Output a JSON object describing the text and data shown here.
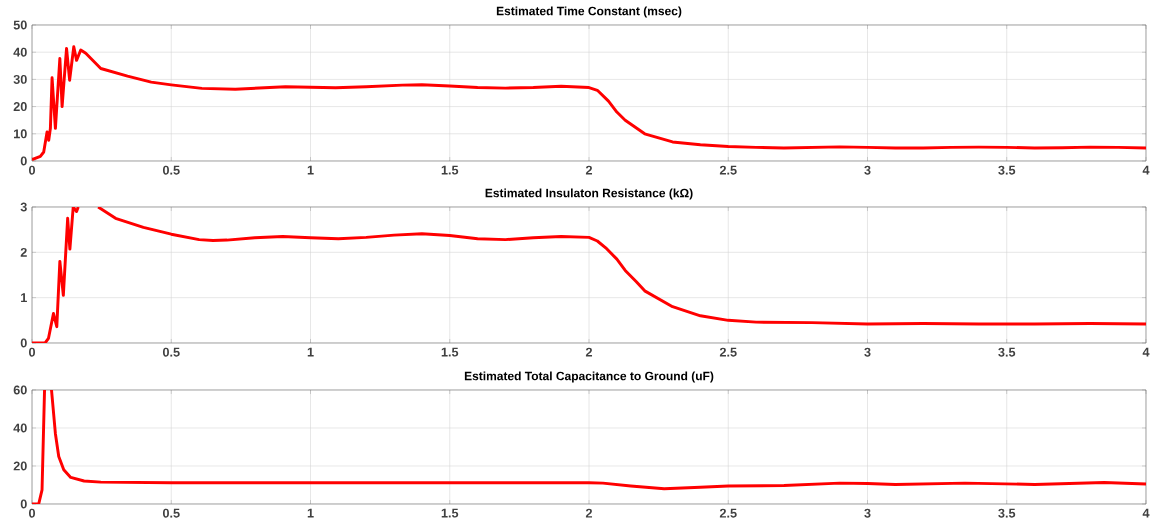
{
  "chart_data": [
    {
      "type": "line",
      "title": "Estimated Time Constant (msec)",
      "grid": true,
      "x": [
        0,
        0.03,
        0.042,
        0.054,
        0.06,
        0.066,
        0.072,
        0.084,
        0.1,
        0.108,
        0.124,
        0.135,
        0.15,
        0.16,
        0.175,
        0.193,
        0.247,
        0.343,
        0.428,
        0.5,
        0.61,
        0.73,
        0.91,
        1.09,
        1.2,
        1.33,
        1.4,
        1.5,
        1.6,
        1.7,
        1.8,
        1.9,
        2.0,
        2.03,
        2.07,
        2.1,
        2.13,
        2.2,
        2.3,
        2.4,
        2.5,
        2.6,
        2.7,
        2.8,
        2.9,
        3.0,
        3.1,
        3.2,
        3.3,
        3.4,
        3.5,
        3.6,
        3.7,
        3.8,
        3.9,
        4.0
      ],
      "series": [
        {
          "color": "#ff0000",
          "values": [
            0.5,
            1.7,
            3.3,
            10.7,
            7.6,
            12,
            30.6,
            12,
            37.7,
            20,
            41.4,
            29.7,
            42,
            37,
            40.8,
            39.6,
            34,
            31.2,
            29,
            28,
            26.7,
            26.4,
            27.3,
            26.9,
            27.3,
            27.9,
            28,
            27.6,
            27,
            26.8,
            27,
            27.5,
            27,
            26,
            22,
            18,
            15,
            10,
            7,
            6,
            5.3,
            5,
            4.8,
            5,
            5.2,
            5,
            4.8,
            4.8,
            5,
            5.1,
            5,
            4.8,
            4.9,
            5.1,
            5,
            4.8
          ]
        }
      ],
      "xlim": [
        0,
        4
      ],
      "xticks": [
        0,
        0.5,
        1,
        1.5,
        2,
        2.5,
        3,
        3.5,
        4
      ],
      "ylim": [
        0,
        50
      ],
      "yticks": [
        0,
        10,
        20,
        30,
        40,
        50
      ]
    },
    {
      "type": "line",
      "title": "Estimated Insulaton Resistance (kΩ)",
      "grid": true,
      "x": [
        0,
        0.047,
        0.059,
        0.077,
        0.089,
        0.1,
        0.1125,
        0.128,
        0.136,
        0.148,
        0.16,
        0.166,
        0.2,
        0.2375,
        0.3,
        0.4,
        0.5,
        0.6,
        0.65,
        0.7,
        0.8,
        0.9,
        1.0,
        1.1,
        1.2,
        1.3,
        1.4,
        1.5,
        1.6,
        1.7,
        1.8,
        1.9,
        2.0,
        2.03,
        2.06,
        2.1,
        2.13,
        2.17,
        2.2,
        2.3,
        2.4,
        2.5,
        2.6,
        2.8,
        3.0,
        3.2,
        3.4,
        3.6,
        3.8,
        4.0
      ],
      "series": [
        {
          "color": "#ff0000",
          "values": [
            0,
            0,
            0.1,
            0.65,
            0.36,
            1.8,
            1.05,
            2.75,
            2.07,
            3,
            2.9,
            3,
            null,
            3,
            2.75,
            2.55,
            2.4,
            2.28,
            2.26,
            2.27,
            2.32,
            2.35,
            2.32,
            2.3,
            2.33,
            2.38,
            2.41,
            2.37,
            2.3,
            2.28,
            2.32,
            2.35,
            2.33,
            2.25,
            2.1,
            1.85,
            1.6,
            1.35,
            1.15,
            0.8,
            0.6,
            0.5,
            0.46,
            0.45,
            0.42,
            0.43,
            0.42,
            0.42,
            0.43,
            0.42
          ]
        }
      ],
      "xlim": [
        0,
        4
      ],
      "xticks": [
        0,
        0.5,
        1,
        1.5,
        2,
        2.5,
        3,
        3.5,
        4
      ],
      "ylim": [
        0,
        3
      ],
      "yticks": [
        0,
        1,
        2,
        3
      ]
    },
    {
      "type": "line",
      "title": "Estimated Total Capacitance to Ground (uF)",
      "grid": true,
      "x": [
        0,
        0.024,
        0.036,
        0.045,
        0.058,
        0.07,
        0.084,
        0.096,
        0.114,
        0.139,
        0.187,
        0.247,
        0.5,
        1.0,
        1.5,
        2.0,
        2.05,
        2.15,
        2.27,
        2.4,
        2.5,
        2.7,
        2.9,
        3.0,
        3.1,
        3.35,
        3.6,
        3.85,
        4.0
      ],
      "series": [
        {
          "color": "#ff0000",
          "values": [
            0,
            0,
            7.4,
            60,
            null,
            60,
            37,
            25,
            18,
            14,
            12.1,
            11.5,
            11.2,
            11.2,
            11.2,
            11.2,
            11,
            9.5,
            8,
            8.8,
            9.5,
            9.7,
            11,
            10.8,
            10.3,
            11,
            10.3,
            11.3,
            10.5
          ]
        }
      ],
      "xlim": [
        0,
        4
      ],
      "xticks": [
        0,
        0.5,
        1,
        1.5,
        2,
        2.5,
        3,
        3.5,
        4
      ],
      "ylim": [
        0,
        60
      ],
      "yticks": [
        0,
        20,
        40,
        60
      ]
    }
  ]
}
